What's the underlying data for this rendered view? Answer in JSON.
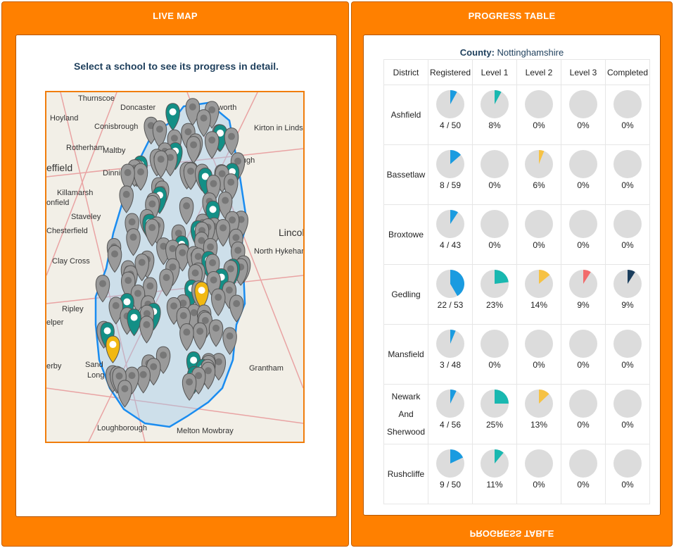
{
  "live_map": {
    "header": "LIVE MAP",
    "instruction": "Select a school to see its progress in detail.",
    "place_labels": [
      "Thurnscoe",
      "Doncaster",
      "Epworth",
      "Hoyland",
      "Conisbrough",
      "Kirton in Lindse",
      "Rotherham",
      "Maltby",
      "effield",
      "orough",
      "Dinnin",
      "Killamarsh",
      "onfield",
      "Staveley",
      "Chesterfield",
      "Lincol",
      "North Hykeham",
      "Clay Cross",
      "Ripley",
      "elper",
      "Sand",
      "erby",
      "Long",
      "Grantham",
      "Loughborough",
      "Melton Mowbray"
    ]
  },
  "progress_table": {
    "header": "PROGRESS TABLE",
    "county_label": "County:",
    "county": "Nottinghamshire",
    "columns": [
      "District",
      "Registered",
      "Level 1",
      "Level 2",
      "Level 3",
      "Completed"
    ],
    "rows": [
      {
        "district": "Ashfield",
        "cells": [
          "4 / 50",
          "8%",
          "0%",
          "0%",
          "0%"
        ]
      },
      {
        "district": "Bassetlaw",
        "cells": [
          "8 / 59",
          "0%",
          "6%",
          "0%",
          "0%"
        ]
      },
      {
        "district": "Broxtowe",
        "cells": [
          "4 / 43",
          "0%",
          "0%",
          "0%",
          "0%"
        ]
      },
      {
        "district": "Gedling",
        "cells": [
          "22 / 53",
          "23%",
          "14%",
          "9%",
          "9%"
        ]
      },
      {
        "district": "Mansfield",
        "cells": [
          "3 / 48",
          "0%",
          "0%",
          "0%",
          "0%"
        ]
      },
      {
        "district": "Newark And Sherwood",
        "cells": [
          "4 / 56",
          "25%",
          "13%",
          "0%",
          "0%"
        ]
      },
      {
        "district": "Rushcliffe",
        "cells": [
          "9 / 50",
          "11%",
          "0%",
          "0%",
          "0%"
        ]
      }
    ],
    "footer_header": "PROGRESS TABLE"
  }
}
